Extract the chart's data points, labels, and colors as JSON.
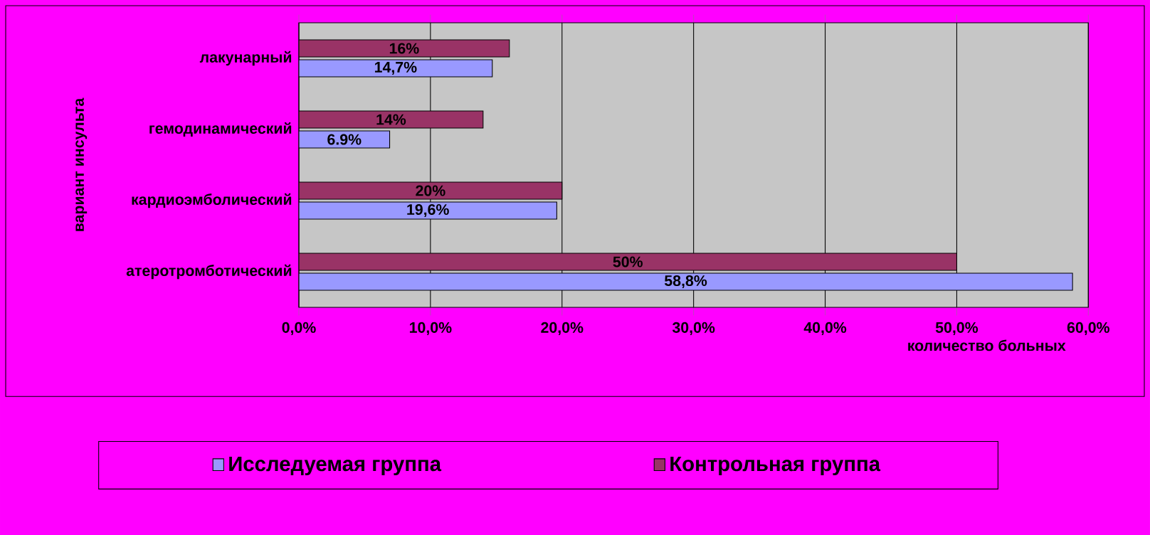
{
  "chart_data": {
    "type": "bar",
    "orientation": "horizontal",
    "xlabel": "количество больных",
    "ylabel": "вариант инсульта",
    "categories": [
      "лакунарный",
      "гемодинамический",
      "кардиоэмболический",
      "атеротромботический"
    ],
    "series": [
      {
        "name": "Исследуемая группа",
        "color": "#9999ff",
        "values": [
          14.7,
          6.9,
          19.6,
          58.8
        ],
        "value_labels": [
          "14,7%",
          "6.9%",
          "19,6%",
          "58,8%"
        ]
      },
      {
        "name": "Контрольная группа",
        "color": "#993366",
        "values": [
          16,
          14,
          20,
          50
        ],
        "value_labels": [
          "16%",
          "14%",
          "20%",
          "50%"
        ]
      }
    ],
    "xlim": [
      0,
      60
    ],
    "xticks": [
      {
        "value": 0,
        "label": "0,0%"
      },
      {
        "value": 10,
        "label": "10,0%"
      },
      {
        "value": 20,
        "label": "20,0%"
      },
      {
        "value": 30,
        "label": "30,0%"
      },
      {
        "value": 40,
        "label": "40,0%"
      },
      {
        "value": 50,
        "label": "50,0%"
      },
      {
        "value": 60,
        "label": "60,0%"
      }
    ],
    "grid": "x",
    "legend": "bottom"
  }
}
